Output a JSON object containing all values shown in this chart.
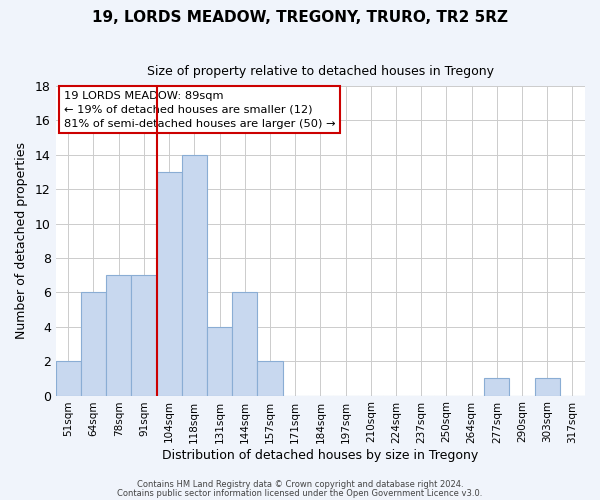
{
  "title1": "19, LORDS MEADOW, TREGONY, TRURO, TR2 5RZ",
  "title2": "Size of property relative to detached houses in Tregony",
  "xlabel": "Distribution of detached houses by size in Tregony",
  "ylabel": "Number of detached properties",
  "bin_labels": [
    "51sqm",
    "64sqm",
    "78sqm",
    "91sqm",
    "104sqm",
    "118sqm",
    "131sqm",
    "144sqm",
    "157sqm",
    "171sqm",
    "184sqm",
    "197sqm",
    "210sqm",
    "224sqm",
    "237sqm",
    "250sqm",
    "264sqm",
    "277sqm",
    "290sqm",
    "303sqm",
    "317sqm"
  ],
  "bar_heights": [
    2,
    6,
    7,
    7,
    13,
    14,
    4,
    6,
    2,
    0,
    0,
    0,
    0,
    0,
    0,
    0,
    0,
    1,
    0,
    1,
    0
  ],
  "bar_color": "#c8d8ef",
  "bar_edge_color": "#8aadd4",
  "grid_color": "#cccccc",
  "vline_x": 3.5,
  "vline_color": "#cc0000",
  "annotation_text_line1": "19 LORDS MEADOW: 89sqm",
  "annotation_text_line2": "← 19% of detached houses are smaller (12)",
  "annotation_text_line3": "81% of semi-detached houses are larger (50) →",
  "annotation_box_color": "#ffffff",
  "annotation_box_edge": "#cc0000",
  "ylim": [
    0,
    18
  ],
  "yticks": [
    0,
    2,
    4,
    6,
    8,
    10,
    12,
    14,
    16,
    18
  ],
  "footer1": "Contains HM Land Registry data © Crown copyright and database right 2024.",
  "footer2": "Contains public sector information licensed under the Open Government Licence v3.0.",
  "plot_bg_color": "#ffffff",
  "fig_bg_color": "#f0f4fb"
}
